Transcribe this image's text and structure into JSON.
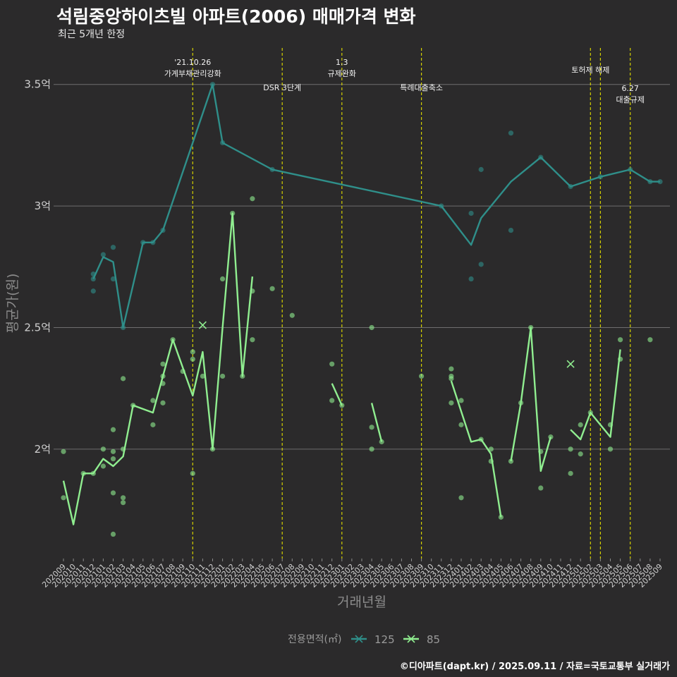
{
  "chart_data": {
    "type": "line",
    "title": "석림중앙하이츠빌 아파트(2006) 매매가격 변화",
    "subtitle": "최근 5개년 한정",
    "caption": "©디아파트(dapt.kr) / 2025.09.11 / 자료=국토교통부 실거래가",
    "xlabel": "거래년월",
    "ylabel": "평균가(원)",
    "ylim": [
      1.55,
      3.65
    ],
    "yticks": [
      {
        "value": 2.0,
        "label": "2억"
      },
      {
        "value": 2.5,
        "label": "2.5억"
      },
      {
        "value": 3.0,
        "label": "3억"
      },
      {
        "value": 3.5,
        "label": "3.5억"
      }
    ],
    "x": [
      "202009",
      "202010",
      "202011",
      "202012",
      "202101",
      "202102",
      "202103",
      "202104",
      "202105",
      "202106",
      "202107",
      "202108",
      "202109",
      "202110",
      "202111",
      "202112",
      "202201",
      "202202",
      "202203",
      "202204",
      "202205",
      "202206",
      "202207",
      "202208",
      "202209",
      "202210",
      "202211",
      "202212",
      "202301",
      "202302",
      "202303",
      "202304",
      "202305",
      "202306",
      "202307",
      "202308",
      "202309",
      "202310",
      "202311",
      "202312",
      "202401",
      "202402",
      "202403",
      "202404",
      "202405",
      "202406",
      "202407",
      "202408",
      "202409",
      "202410",
      "202411",
      "202412",
      "202501",
      "202502",
      "202503",
      "202504",
      "202505",
      "202506",
      "202507",
      "202508",
      "202509"
    ],
    "legend": {
      "title": "전용면적(㎡)",
      "position": "bottom"
    },
    "events": [
      {
        "x": "202110",
        "label": "'21.10.26\n가계부채관리강화",
        "row": 0
      },
      {
        "x": "202207",
        "label": "DSR 3단계",
        "row": 2
      },
      {
        "x": "202301",
        "label": "1.3\n규제완화",
        "row": 0
      },
      {
        "x": "202309",
        "label": "특례대출축소",
        "row": 2
      },
      {
        "x": "202502",
        "label": "토허제 해제",
        "row": 1
      },
      {
        "x": "202503",
        "label": "",
        "row": 1
      },
      {
        "x": "202506",
        "label": "6.27\n대출규제",
        "row": 3
      }
    ],
    "series": [
      {
        "name": "125",
        "color": "#2f8f8a",
        "line": [
          [
            "202012",
            2.7
          ],
          [
            "202101",
            2.79
          ],
          [
            "202102",
            2.77
          ],
          [
            "202103",
            2.5
          ],
          [
            "202105",
            2.85
          ],
          [
            "202106",
            2.85
          ],
          [
            "202107",
            2.9
          ],
          [
            "202112",
            3.5
          ],
          [
            "202201",
            3.26
          ],
          [
            "202206",
            3.15
          ],
          [
            "202311",
            3.0
          ],
          [
            "202402",
            2.84
          ],
          [
            "202403",
            2.95
          ],
          [
            "202406",
            3.1
          ],
          [
            "202409",
            3.2
          ],
          [
            "202412",
            3.08
          ],
          [
            "202503",
            3.12
          ],
          [
            "202506",
            3.15
          ],
          [
            "202508",
            3.1
          ],
          [
            "202509",
            3.1
          ]
        ],
        "points": [
          [
            "202012",
            2.65
          ],
          [
            "202012",
            2.7
          ],
          [
            "202012",
            2.72
          ],
          [
            "202101",
            2.8
          ],
          [
            "202102",
            2.7
          ],
          [
            "202102",
            2.83
          ],
          [
            "202103",
            2.5
          ],
          [
            "202105",
            2.85
          ],
          [
            "202106",
            2.85
          ],
          [
            "202107",
            2.9
          ],
          [
            "202112",
            3.5
          ],
          [
            "202201",
            3.26
          ],
          [
            "202206",
            3.15
          ],
          [
            "202311",
            3.0
          ],
          [
            "202402",
            2.7
          ],
          [
            "202402",
            2.97
          ],
          [
            "202403",
            2.76
          ],
          [
            "202403",
            3.15
          ],
          [
            "202406",
            2.9
          ],
          [
            "202406",
            3.3
          ],
          [
            "202409",
            3.2
          ],
          [
            "202412",
            3.08
          ],
          [
            "202503",
            3.12
          ],
          [
            "202506",
            3.15
          ],
          [
            "202508",
            3.1
          ],
          [
            "202509",
            3.1
          ]
        ],
        "cancelled": []
      },
      {
        "name": "85",
        "color": "#90ee90",
        "line": [
          [
            [
              "202009",
              1.87
            ],
            [
              "202010",
              1.69
            ],
            [
              "202011",
              1.9
            ],
            [
              "202012",
              1.9
            ],
            [
              "202101",
              1.96
            ],
            [
              "202102",
              1.93
            ],
            [
              "202103",
              1.97
            ],
            [
              "202104",
              2.18
            ],
            [
              "202106",
              2.15
            ],
            [
              "202107",
              2.3
            ],
            [
              "202108",
              2.45
            ],
            [
              "202110",
              2.22
            ],
            [
              "202111",
              2.4
            ],
            [
              "202112",
              2.0
            ],
            [
              "202201",
              2.5
            ],
            [
              "202202",
              2.97
            ],
            [
              "202203",
              2.3
            ],
            [
              "202204",
              2.71
            ]
          ],
          [
            [
              "202212",
              2.27
            ],
            [
              "202301",
              2.18
            ]
          ],
          [
            [
              "202304",
              2.19
            ],
            [
              "202305",
              2.03
            ]
          ],
          [
            [
              "202312",
              2.28
            ],
            [
              "202402",
              2.03
            ],
            [
              "202403",
              2.04
            ],
            [
              "202404",
              1.98
            ],
            [
              "202405",
              1.72
            ]
          ],
          [
            [
              "202406",
              1.95
            ],
            [
              "202407",
              2.19
            ],
            [
              "202408",
              2.5
            ],
            [
              "202409",
              1.91
            ],
            [
              "202410",
              2.05
            ]
          ],
          [
            [
              "202412",
              2.08
            ],
            [
              "202501",
              2.04
            ],
            [
              "202502",
              2.15
            ],
            [
              "202504",
              2.05
            ],
            [
              "202505",
              2.41
            ]
          ]
        ],
        "points": [
          [
            "202009",
            1.99
          ],
          [
            "202009",
            1.8
          ],
          [
            "202011",
            1.9
          ],
          [
            "202012",
            1.9
          ],
          [
            "202101",
            2.0
          ],
          [
            "202101",
            1.93
          ],
          [
            "202102",
            2.08
          ],
          [
            "202102",
            1.99
          ],
          [
            "202102",
            1.96
          ],
          [
            "202102",
            1.82
          ],
          [
            "202102",
            1.65
          ],
          [
            "202103",
            2.29
          ],
          [
            "202103",
            2.0
          ],
          [
            "202103",
            1.8
          ],
          [
            "202103",
            1.78
          ],
          [
            "202104",
            2.18
          ],
          [
            "202106",
            2.2
          ],
          [
            "202106",
            2.1
          ],
          [
            "202107",
            2.35
          ],
          [
            "202107",
            2.3
          ],
          [
            "202107",
            2.27
          ],
          [
            "202107",
            2.19
          ],
          [
            "202108",
            2.45
          ],
          [
            "202109",
            2.32
          ],
          [
            "202110",
            2.4
          ],
          [
            "202110",
            2.37
          ],
          [
            "202110",
            1.9
          ],
          [
            "202111",
            2.3
          ],
          [
            "202112",
            2.0
          ],
          [
            "202201",
            2.7
          ],
          [
            "202201",
            2.3
          ],
          [
            "202202",
            2.97
          ],
          [
            "202203",
            2.3
          ],
          [
            "202204",
            3.03
          ],
          [
            "202204",
            2.65
          ],
          [
            "202204",
            2.45
          ],
          [
            "202206",
            2.66
          ],
          [
            "202208",
            2.55
          ],
          [
            "202212",
            2.35
          ],
          [
            "202212",
            2.2
          ],
          [
            "202301",
            2.18
          ],
          [
            "202304",
            2.5
          ],
          [
            "202304",
            2.09
          ],
          [
            "202304",
            2.0
          ],
          [
            "202305",
            2.03
          ],
          [
            "202309",
            2.3
          ],
          [
            "202312",
            2.33
          ],
          [
            "202312",
            2.3
          ],
          [
            "202312",
            2.29
          ],
          [
            "202312",
            2.19
          ],
          [
            "202401",
            2.2
          ],
          [
            "202401",
            2.1
          ],
          [
            "202401",
            1.8
          ],
          [
            "202403",
            2.04
          ],
          [
            "202404",
            2.0
          ],
          [
            "202404",
            1.95
          ],
          [
            "202405",
            1.72
          ],
          [
            "202406",
            1.95
          ],
          [
            "202407",
            2.19
          ],
          [
            "202408",
            2.5
          ],
          [
            "202409",
            1.99
          ],
          [
            "202409",
            1.84
          ],
          [
            "202410",
            2.05
          ],
          [
            "202412",
            2.0
          ],
          [
            "202412",
            1.9
          ],
          [
            "202501",
            2.1
          ],
          [
            "202501",
            1.98
          ],
          [
            "202502",
            2.15
          ],
          [
            "202504",
            2.1
          ],
          [
            "202504",
            2.0
          ],
          [
            "202505",
            2.45
          ],
          [
            "202505",
            2.37
          ],
          [
            "202508",
            2.45
          ]
        ],
        "cancelled": [
          [
            "202111",
            2.51
          ],
          [
            "202412",
            2.35
          ]
        ]
      }
    ]
  }
}
